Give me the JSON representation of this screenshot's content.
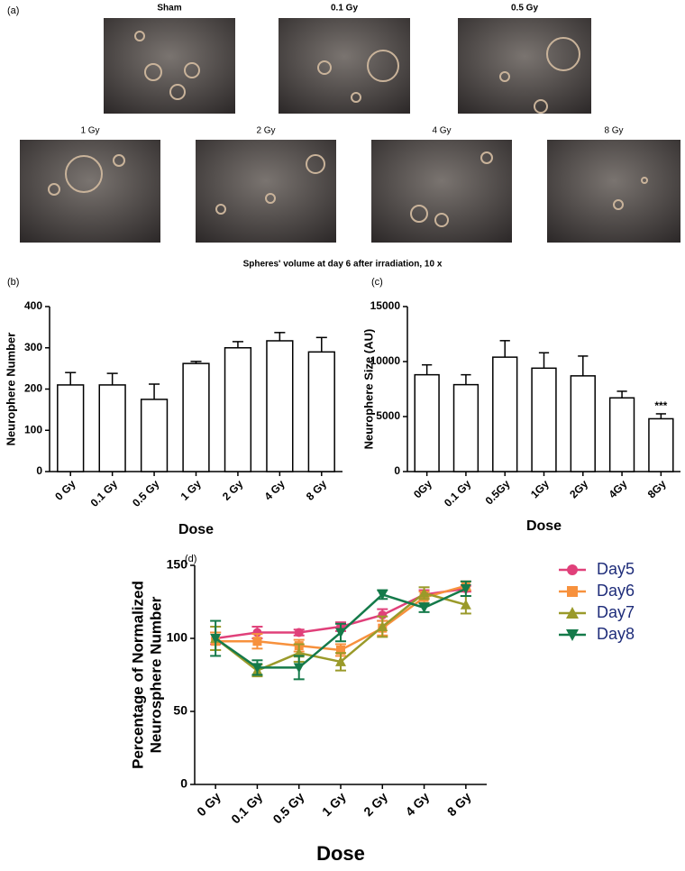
{
  "panel_labels": [
    "(a)",
    "(b)",
    "(c)",
    "(d)"
  ],
  "images": {
    "labels": [
      "Sham",
      "0.1 Gy",
      "0.5 Gy",
      "1 Gy",
      "2 Gy",
      "4 Gy",
      "8 Gy"
    ],
    "caption": "Spheres' volume at day 6 after irradiation, 10 x"
  },
  "chart_data": [
    {
      "type": "bar",
      "categories": [
        "0 Gy",
        "0.1 Gy",
        "0.5 Gy",
        "1 Gy",
        "2 Gy",
        "4 Gy",
        "8 Gy"
      ],
      "values": [
        210,
        210,
        175,
        262,
        300,
        317,
        290
      ],
      "errors": [
        30,
        28,
        37,
        5,
        15,
        20,
        35
      ],
      "color": "#ffffff",
      "edgecolor": "#000000",
      "ylim": [
        0,
        400
      ],
      "yticks": [
        0,
        100,
        200,
        300,
        400
      ],
      "ylabel": [
        "Neurophere Number"
      ],
      "xlabel": "Dose"
    },
    {
      "type": "bar",
      "categories": [
        "0Gy",
        "0.1 Gy",
        "0.5Gy",
        "1Gy",
        "2Gy",
        "4Gy",
        "8Gy"
      ],
      "values": [
        8800,
        7900,
        10400,
        9400,
        8700,
        6700,
        4800
      ],
      "errors": [
        900,
        900,
        1500,
        1400,
        1800,
        600,
        450
      ],
      "color": "#ffffff",
      "edgecolor": "#000000",
      "ylim": [
        0,
        15000
      ],
      "yticks": [
        0,
        5000,
        10000,
        15000
      ],
      "ylabel": [
        "Neurophere Size (AU)"
      ],
      "xlabel": "Dose",
      "annotations": [
        {
          "text": "***",
          "x": "8Gy"
        }
      ]
    },
    {
      "type": "line",
      "categories": [
        "0 Gy",
        "0.1 Gy",
        "0.5 Gy",
        "1 Gy",
        "2 Gy",
        "4 Gy",
        "8 Gy"
      ],
      "series": [
        {
          "name": "Day5",
          "color": "#e0407a",
          "marker": "circle",
          "values": [
            100,
            104,
            104,
            108,
            116,
            130,
            134
          ],
          "errors": [
            4,
            4,
            2,
            3,
            4,
            3,
            2
          ]
        },
        {
          "name": "Day6",
          "color": "#f7913d",
          "marker": "square",
          "values": [
            98,
            98,
            95,
            92,
            107,
            128,
            136
          ],
          "errors": [
            6,
            5,
            4,
            4,
            5,
            4,
            3
          ]
        },
        {
          "name": "Day7",
          "color": "#9a9a2a",
          "marker": "triangle-up",
          "values": [
            100,
            78,
            90,
            84,
            108,
            131,
            123
          ],
          "errors": [
            8,
            4,
            6,
            6,
            7,
            4,
            6
          ]
        },
        {
          "name": "Day8",
          "color": "#157a4a",
          "marker": "triangle-down",
          "values": [
            100,
            80,
            80,
            104,
            130,
            121,
            134
          ],
          "errors": [
            12,
            5,
            8,
            6,
            3,
            3,
            5
          ]
        }
      ],
      "ylim": [
        0,
        150
      ],
      "yticks": [
        0,
        50,
        100,
        150
      ],
      "ylabel": [
        "Percentage of Normalized",
        "Neurosphere Number"
      ],
      "xlabel": "Dose",
      "legend": "right"
    }
  ]
}
